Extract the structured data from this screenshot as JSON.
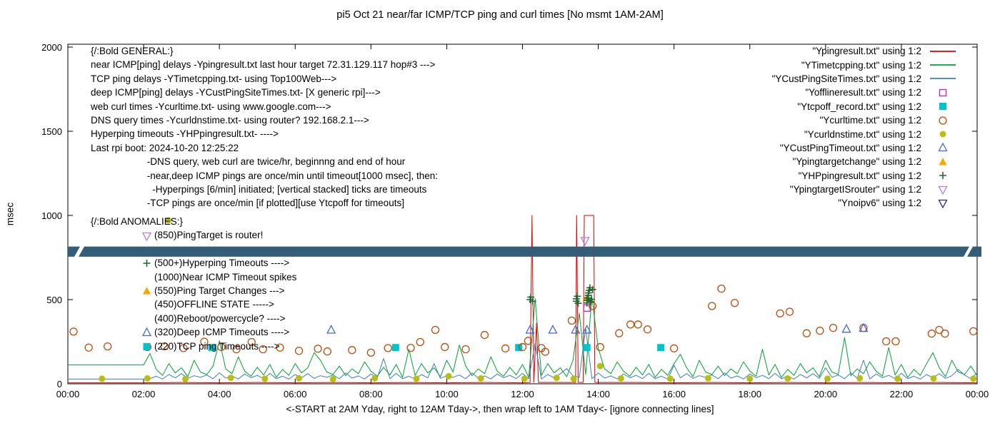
{
  "title": "pi5 Oct 21  near/far ICMP/TCP ping and curl times [No msmt 1AM-2AM]",
  "y_axis": {
    "label": "msec",
    "ticks": [
      0,
      500,
      1000,
      1500,
      2000
    ],
    "max": 2000
  },
  "x_axis": {
    "caption": "<-START at 2AM Yday, right to 12AM Tday->, then wrap left to 1AM Tday<- [ignore connecting lines]",
    "tick_labels": [
      "00:00",
      "02:00",
      "04:00",
      "06:00",
      "08:00",
      "10:00",
      "12:00",
      "14:00",
      "16:00",
      "18:00",
      "20:00",
      "22:00",
      "00:00"
    ],
    "hours_span": 24
  },
  "band": {
    "color": "#345d77",
    "from_msec": 755,
    "to_msec": 815
  },
  "annotations": {
    "general_lines": [
      "{/:Bold GENERAL:}",
      "near ICMP[ping] delays -Ypingresult.txt last hour target 72.31.129.117 hop#3 --->",
      "TCP ping delays -YTimetcpping.txt- using Top100Web--->",
      "deep ICMP[ping] delays -YCustPingSiteTimes.txt- [X generic rpi]--->",
      "web curl times -Ycurltime.txt- using www.google.com--->",
      "DNS query times -Ycurldnstime.txt- using router? 192.168.2.1--->",
      "Hyperping timeouts -YHPpingresult.txt- ---->",
      "Last rpi boot: 2024-10-20 12:25:22",
      "                     -DNS query, web curl are twice/hr, beginnng and end of hour",
      "                     -near,deep ICMP pings are once/min until timeout[1000 msec], then:",
      "                       -Hyperpings [6/min] initiated; [vertical stacked] ticks are timeouts",
      "                     -TCP pings are once/min [if plotted][use Ytcpoff for timeouts]"
    ],
    "anomalies_header": "{/:Bold ANOMALIES:}",
    "anomalies_items": [
      {
        "marker": "triangle-down-open",
        "color": "#b478e8",
        "text": "(850)PingTarget is router!"
      },
      {
        "marker": null,
        "color": null,
        "text": ""
      },
      {
        "marker": "plus",
        "color": "#226633",
        "text": "(500+)Hyperping Timeouts ---->"
      },
      {
        "marker": null,
        "color": null,
        "text": "(1000)Near ICMP Timeout spikes"
      },
      {
        "marker": "triangle-filled",
        "color": "#f5a800",
        "text": "(550)Ping Target Changes --->"
      },
      {
        "marker": null,
        "color": null,
        "text": "(450)OFFLINE STATE ----->"
      },
      {
        "marker": null,
        "color": null,
        "text": "(400)Reboot/powercycle? ---->"
      },
      {
        "marker": "triangle-open",
        "color": "#4466dd",
        "text": "(320)Deep ICMP Timeouts ---->"
      },
      {
        "marker": "square-filled",
        "color": "#00c4cc",
        "text": "(220)TCP ping Timeouts ---->"
      }
    ]
  },
  "legend": [
    {
      "label": "\"Ypingresult.txt\" using 1:2",
      "sample": "line",
      "color": "#e00000"
    },
    {
      "label": "\"YTimetcpping.txt\" using 1:2",
      "sample": "line",
      "color": "#00a135"
    },
    {
      "label": "\"YCustPingSiteTimes.txt\" using 1:2",
      "sample": "line",
      "color": "#3d7ebc"
    },
    {
      "label": "\"Yofflineresult.txt\" using 1:2",
      "sample": "square-open",
      "color": "#c020c0"
    },
    {
      "label": "\"Ytcpoff_record.txt\" using 1:2",
      "sample": "square-filled",
      "color": "#00c4cc"
    },
    {
      "label": "\"Ycurltime.txt\" using 1:2",
      "sample": "circle-open",
      "color": "#b84d0e"
    },
    {
      "label": "\"Ycurldnstime.txt\" using 1:2",
      "sample": "circle-filled",
      "color": "#b9bf10"
    },
    {
      "label": "\"YCustPingTimeout.txt\" using 1:2",
      "sample": "triangle-open",
      "color": "#4466dd"
    },
    {
      "label": "\"Ypingtargetchange\" using 1:2",
      "sample": "triangle-filled",
      "color": "#f5a800"
    },
    {
      "label": "\"YHPpingresult.txt\" using 1:2",
      "sample": "plus",
      "color": "#226633"
    },
    {
      "label": "\"YpingtargetISrouter\" using 1:2",
      "sample": "triangle-down-open",
      "color": "#b478e8"
    },
    {
      "label": "\"Ynoipv6\" using 1:2",
      "sample": "triangle-down-open",
      "color": "#202880"
    }
  ],
  "chart_data": {
    "type": "line",
    "title": "pi5 Oct 21  near/far ICMP/TCP ping and curl times [No msmt 1AM-2AM]",
    "xlabel": "<-START at 2AM Yday, right to 12AM Tday->, then wrap left to 1AM Tday<- [ignore connecting lines]",
    "ylabel": "msec",
    "xlim_hours": [
      0,
      24
    ],
    "ylim": [
      0,
      2000
    ],
    "grid": false,
    "legend_position": "top-right-inside",
    "series": [
      {
        "name": "Ypingresult.txt",
        "type": "line",
        "color": "#e00000",
        "points": [
          [
            0,
            6
          ],
          [
            2,
            6
          ],
          [
            3,
            8
          ],
          [
            4,
            6
          ],
          [
            5,
            8
          ],
          [
            6,
            6
          ],
          [
            7,
            8
          ],
          [
            8,
            6
          ],
          [
            9,
            8
          ],
          [
            10,
            6
          ],
          [
            11,
            8
          ],
          [
            12,
            6
          ],
          [
            12.2,
            8
          ],
          [
            12.25,
            1000
          ],
          [
            12.3,
            8
          ],
          [
            12.37,
            360
          ],
          [
            12.42,
            8
          ],
          [
            13.0,
            8
          ],
          [
            13.4,
            8
          ],
          [
            13.43,
            1000
          ],
          [
            13.47,
            8
          ],
          [
            13.6,
            8
          ],
          [
            13.63,
            1000
          ],
          [
            13.88,
            1000
          ],
          [
            13.91,
            8
          ],
          [
            15,
            8
          ],
          [
            16,
            6
          ],
          [
            17,
            8
          ],
          [
            18,
            6
          ],
          [
            19,
            8
          ],
          [
            20,
            6
          ],
          [
            21,
            8
          ],
          [
            22,
            6
          ],
          [
            23,
            8
          ],
          [
            24,
            6
          ]
        ]
      },
      {
        "name": "YTimetcpping.txt",
        "type": "line",
        "color": "#00a135",
        "start_hour": 0,
        "step_hours": 0.1666667,
        "values": [
          112,
          112,
          112,
          112,
          112,
          112,
          112,
          112,
          112,
          112,
          112,
          112,
          112,
          180,
          85,
          50,
          120,
          65,
          95,
          42,
          140,
          70,
          55,
          105,
          255,
          88,
          60,
          160,
          75,
          45,
          98,
          52,
          115,
          38,
          85,
          50,
          120,
          65,
          95,
          185,
          140,
          70,
          55,
          105,
          48,
          88,
          60,
          130,
          75,
          45,
          98,
          52,
          115,
          38,
          205,
          50,
          120,
          65,
          95,
          42,
          140,
          70,
          230,
          105,
          48,
          88,
          60,
          160,
          75,
          45,
          98,
          52,
          115,
          38,
          505,
          50,
          120,
          65,
          95,
          42,
          140,
          420,
          55,
          515,
          210,
          88,
          60,
          130,
          75,
          45,
          98,
          52,
          115,
          38,
          85,
          50,
          120,
          175,
          95,
          42,
          140,
          70,
          55,
          105,
          48,
          88,
          60,
          130,
          75,
          45,
          205,
          52,
          115,
          38,
          85,
          50,
          120,
          65,
          95,
          42,
          140,
          70,
          55,
          275,
          48,
          88,
          60,
          130,
          75,
          45,
          215,
          52,
          115,
          38,
          85,
          50,
          120,
          185,
          95,
          42,
          140,
          70,
          55,
          105,
          48
        ]
      },
      {
        "name": "YCustPingSiteTimes.txt",
        "type": "line",
        "color": "#3d7ebc",
        "start_hour": 0,
        "step_hours": 0.1666667,
        "values": [
          28,
          28,
          28,
          28,
          28,
          28,
          28,
          28,
          28,
          28,
          28,
          28,
          28,
          30,
          45,
          28,
          55,
          35,
          60,
          32,
          48,
          38,
          52,
          30,
          65,
          34,
          46,
          29,
          58,
          36,
          50,
          31,
          62,
          30,
          45,
          28,
          55,
          35,
          60,
          32,
          48,
          38,
          52,
          30,
          65,
          34,
          46,
          29,
          58,
          36,
          150,
          31,
          62,
          30,
          45,
          28,
          55,
          35,
          120,
          32,
          48,
          38,
          52,
          30,
          65,
          34,
          46,
          29,
          58,
          36,
          50,
          31,
          62,
          30,
          240,
          28,
          55,
          35,
          60,
          90,
          48,
          38,
          330,
          30,
          65,
          34,
          46,
          29,
          58,
          36,
          50,
          31,
          62,
          30,
          45,
          28,
          110,
          35,
          60,
          32,
          48,
          38,
          52,
          30,
          65,
          34,
          46,
          29,
          58,
          36,
          50,
          31,
          62,
          30,
          45,
          28,
          55,
          35,
          60,
          32,
          95,
          38,
          52,
          30,
          65,
          34,
          140,
          29,
          58,
          36,
          50,
          31,
          62,
          30,
          45,
          28,
          55,
          35,
          60,
          32,
          48,
          85,
          52,
          30,
          65
        ]
      },
      {
        "name": "Yofflineresult.txt",
        "type": "square-open",
        "color": "#c020c0",
        "points": [
          [
            13.7,
            450
          ]
        ]
      },
      {
        "name": "Ytcpoff_record.txt",
        "type": "square-filled",
        "color": "#00c4cc",
        "points": [
          [
            3.8,
            215
          ],
          [
            8.65,
            215
          ],
          [
            11.9,
            215
          ],
          [
            13.7,
            215
          ],
          [
            15.65,
            215
          ]
        ]
      },
      {
        "name": "Ycurltime.txt",
        "type": "circle-open",
        "color": "#b84d0e",
        "points": [
          [
            0.15,
            310
          ],
          [
            0.55,
            215
          ],
          [
            1.05,
            222
          ],
          [
            2.1,
            218
          ],
          [
            2.55,
            222
          ],
          [
            3.05,
            212
          ],
          [
            3.6,
            250
          ],
          [
            4.05,
            218
          ],
          [
            4.45,
            205
          ],
          [
            4.85,
            248
          ],
          [
            5.15,
            205
          ],
          [
            5.6,
            215
          ],
          [
            6.1,
            196
          ],
          [
            6.6,
            208
          ],
          [
            6.85,
            192
          ],
          [
            7.5,
            200
          ],
          [
            8.0,
            185
          ],
          [
            8.45,
            212
          ],
          [
            9.05,
            213
          ],
          [
            9.3,
            248
          ],
          [
            9.7,
            320
          ],
          [
            9.95,
            218
          ],
          [
            10.5,
            205
          ],
          [
            11.0,
            290
          ],
          [
            11.55,
            210
          ],
          [
            12.0,
            218
          ],
          [
            12.15,
            255
          ],
          [
            12.5,
            212
          ],
          [
            12.6,
            190
          ],
          [
            13.3,
            375
          ],
          [
            13.85,
            462
          ],
          [
            14.05,
            218
          ],
          [
            14.55,
            300
          ],
          [
            14.85,
            352
          ],
          [
            15.05,
            352
          ],
          [
            15.3,
            323
          ],
          [
            16.0,
            210
          ],
          [
            17.0,
            462
          ],
          [
            17.25,
            565
          ],
          [
            17.6,
            480
          ],
          [
            18.8,
            418
          ],
          [
            19.05,
            428
          ],
          [
            19.5,
            300
          ],
          [
            19.85,
            315
          ],
          [
            20.2,
            332
          ],
          [
            21.0,
            332
          ],
          [
            21.6,
            252
          ],
          [
            21.85,
            252
          ],
          [
            22.8,
            298
          ],
          [
            23.0,
            320
          ],
          [
            23.15,
            298
          ],
          [
            23.9,
            312
          ]
        ]
      },
      {
        "name": "Ycurldnstime.txt",
        "type": "circle-filled",
        "color": "#b9bf10",
        "points": [
          [
            0.9,
            30
          ],
          [
            2.1,
            32
          ],
          [
            2.65,
            970
          ],
          [
            3.1,
            28
          ],
          [
            4.3,
            35
          ],
          [
            5.2,
            30
          ],
          [
            6.1,
            33
          ],
          [
            7.0,
            28
          ],
          [
            8.1,
            32
          ],
          [
            9.2,
            30
          ],
          [
            10.05,
            45
          ],
          [
            10.9,
            32
          ],
          [
            12.05,
            30
          ],
          [
            12.9,
            35
          ],
          [
            13.35,
            30
          ],
          [
            14.05,
            105
          ],
          [
            14.6,
            32
          ],
          [
            15.9,
            30
          ],
          [
            16.9,
            33
          ],
          [
            18.0,
            30
          ],
          [
            19.0,
            32
          ],
          [
            20.05,
            30
          ],
          [
            20.9,
            33
          ],
          [
            21.9,
            30
          ],
          [
            22.85,
            32
          ],
          [
            23.9,
            30
          ]
        ]
      },
      {
        "name": "YCustPingTimeout.txt",
        "type": "triangle-open",
        "color": "#4466dd",
        "points": [
          [
            6.95,
            320
          ],
          [
            12.2,
            320
          ],
          [
            12.8,
            320
          ],
          [
            13.4,
            320
          ],
          [
            13.7,
            320
          ],
          [
            20.55,
            325
          ],
          [
            21.0,
            330
          ]
        ]
      },
      {
        "name": "Ypingtargetchange",
        "type": "triangle-filled",
        "color": "#f5a800",
        "points": [
          [
            13.7,
            510
          ]
        ]
      },
      {
        "name": "YHPpingresult.txt",
        "type": "plus",
        "color": "#226633",
        "points": [
          [
            12.2,
            500
          ],
          [
            12.22,
            515
          ],
          [
            12.27,
            490
          ],
          [
            13.42,
            490
          ],
          [
            13.42,
            505
          ],
          [
            13.45,
            520
          ],
          [
            13.47,
            478
          ],
          [
            13.7,
            480
          ],
          [
            13.7,
            495
          ],
          [
            13.72,
            510
          ],
          [
            13.74,
            525
          ],
          [
            13.74,
            540
          ],
          [
            13.76,
            555
          ],
          [
            13.78,
            570
          ],
          [
            13.8,
            488
          ],
          [
            13.82,
            502
          ],
          [
            13.85,
            560
          ]
        ]
      },
      {
        "name": "YpingtargetISrouter",
        "type": "triangle-down-open",
        "color": "#b478e8",
        "points": [
          [
            13.65,
            850
          ]
        ]
      },
      {
        "name": "Ynoipv6",
        "type": "triangle-down-open",
        "color": "#202880",
        "points": []
      }
    ]
  }
}
